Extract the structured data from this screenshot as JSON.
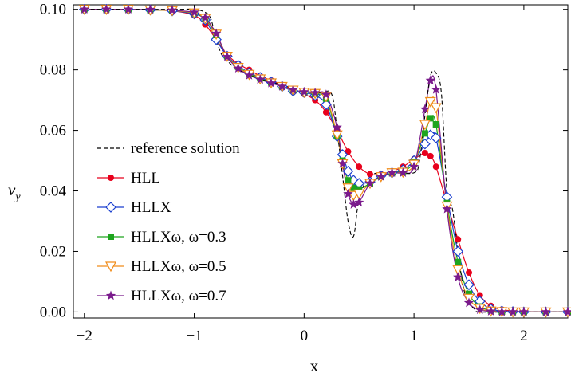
{
  "chart_data": {
    "type": "line",
    "title": "",
    "xlabel": "x",
    "ylabel_main": "v",
    "ylabel_sub": "y",
    "xlim": [
      -2.1,
      2.4
    ],
    "ylim": [
      -0.002,
      0.1015
    ],
    "x_ticks": [
      -2,
      -1,
      0,
      1,
      2
    ],
    "x_tick_labels": [
      "−2",
      "−1",
      "0",
      "1",
      "2"
    ],
    "y_ticks": [
      0.0,
      0.02,
      0.04,
      0.06,
      0.08,
      0.1
    ],
    "y_tick_labels": [
      "0.00",
      "0.02",
      "0.04",
      "0.06",
      "0.08",
      "0.10"
    ],
    "grid": false,
    "legend_position": "left-bottom",
    "series": [
      {
        "name": "reference solution",
        "color": "#000000",
        "style": "dashed",
        "marker": "none",
        "x": [
          -2.0,
          -1.2,
          -1.0,
          -0.9,
          -0.85,
          -0.8,
          -0.75,
          -0.7,
          -0.6,
          -0.4,
          -0.2,
          0.0,
          0.15,
          0.25,
          0.3,
          0.35,
          0.4,
          0.45,
          0.5,
          0.6,
          0.8,
          1.0,
          1.05,
          1.1,
          1.15,
          1.2,
          1.25,
          1.3,
          1.35,
          1.4,
          1.45,
          1.5,
          1.55,
          1.6,
          2.0,
          2.4
        ],
        "y": [
          0.1,
          0.1,
          0.1,
          0.099,
          0.097,
          0.09,
          0.085,
          0.083,
          0.08,
          0.077,
          0.075,
          0.073,
          0.0725,
          0.072,
          0.06,
          0.045,
          0.03,
          0.025,
          0.037,
          0.045,
          0.046,
          0.046,
          0.05,
          0.065,
          0.078,
          0.079,
          0.072,
          0.04,
          0.034,
          0.02,
          0.008,
          0.003,
          0.001,
          0.0,
          0.0,
          0.0
        ]
      },
      {
        "name": "HLL",
        "color": "#e8001c",
        "style": "solid",
        "marker": "circle",
        "x": [
          -2.0,
          -1.8,
          -1.6,
          -1.4,
          -1.2,
          -1.0,
          -0.9,
          -0.8,
          -0.7,
          -0.6,
          -0.5,
          -0.4,
          -0.3,
          -0.2,
          -0.1,
          0.0,
          0.1,
          0.2,
          0.3,
          0.4,
          0.5,
          0.6,
          0.7,
          0.8,
          0.9,
          1.0,
          1.1,
          1.15,
          1.2,
          1.3,
          1.4,
          1.5,
          1.6,
          1.7,
          1.8,
          1.9,
          2.0,
          2.2,
          2.4
        ],
        "y": [
          0.1,
          0.1,
          0.0999,
          0.0998,
          0.0995,
          0.098,
          0.095,
          0.09,
          0.085,
          0.082,
          0.08,
          0.078,
          0.0765,
          0.075,
          0.0735,
          0.072,
          0.07,
          0.066,
          0.06,
          0.053,
          0.048,
          0.0455,
          0.0455,
          0.0465,
          0.048,
          0.0505,
          0.0525,
          0.0515,
          0.048,
          0.036,
          0.024,
          0.013,
          0.0055,
          0.002,
          0.0008,
          0.0003,
          0.0001,
          0.0,
          0.0
        ]
      },
      {
        "name": "HLLX",
        "color": "#1a3fcf",
        "style": "solid",
        "marker": "diamond",
        "x": [
          -2.0,
          -1.8,
          -1.6,
          -1.4,
          -1.2,
          -1.0,
          -0.9,
          -0.8,
          -0.7,
          -0.6,
          -0.5,
          -0.4,
          -0.3,
          -0.2,
          -0.1,
          0.0,
          0.1,
          0.2,
          0.3,
          0.35,
          0.4,
          0.45,
          0.5,
          0.6,
          0.7,
          0.8,
          0.9,
          1.0,
          1.1,
          1.15,
          1.2,
          1.3,
          1.4,
          1.5,
          1.6,
          1.7,
          1.8,
          1.9,
          2.0,
          2.2,
          2.4
        ],
        "y": [
          0.1,
          0.1,
          0.1,
          0.0998,
          0.0995,
          0.0985,
          0.0965,
          0.09,
          0.0845,
          0.0815,
          0.079,
          0.0775,
          0.076,
          0.0745,
          0.073,
          0.0725,
          0.0715,
          0.0685,
          0.058,
          0.052,
          0.0465,
          0.0435,
          0.0425,
          0.043,
          0.045,
          0.046,
          0.047,
          0.05,
          0.0555,
          0.0585,
          0.0575,
          0.038,
          0.02,
          0.009,
          0.0035,
          0.001,
          0.0003,
          0.0001,
          0.0,
          0.0,
          0.0
        ]
      },
      {
        "name": "HLLXω, ω=0.3",
        "color": "#1ea51e",
        "style": "solid",
        "marker": "square",
        "x": [
          -2.0,
          -1.8,
          -1.6,
          -1.4,
          -1.2,
          -1.0,
          -0.9,
          -0.8,
          -0.7,
          -0.6,
          -0.5,
          -0.4,
          -0.3,
          -0.2,
          -0.1,
          0.0,
          0.1,
          0.2,
          0.3,
          0.35,
          0.4,
          0.45,
          0.5,
          0.6,
          0.7,
          0.8,
          0.9,
          1.0,
          1.1,
          1.15,
          1.2,
          1.3,
          1.4,
          1.5,
          1.6,
          1.7,
          1.8,
          1.9,
          2.0,
          2.2,
          2.4
        ],
        "y": [
          0.1,
          0.1,
          0.1,
          0.0998,
          0.0996,
          0.0987,
          0.0968,
          0.0915,
          0.0845,
          0.081,
          0.0787,
          0.0772,
          0.0758,
          0.0745,
          0.0733,
          0.0725,
          0.072,
          0.0705,
          0.058,
          0.05,
          0.0435,
          0.041,
          0.0405,
          0.0425,
          0.0447,
          0.046,
          0.0465,
          0.0495,
          0.059,
          0.064,
          0.062,
          0.036,
          0.0165,
          0.006,
          0.0018,
          0.0005,
          0.0001,
          0.0,
          0.0,
          0.0,
          0.0
        ]
      },
      {
        "name": "HLLXω, ω=0.5",
        "color": "#f08c1a",
        "style": "solid",
        "marker": "triangle-down",
        "x": [
          -2.0,
          -1.8,
          -1.6,
          -1.4,
          -1.2,
          -1.0,
          -0.9,
          -0.8,
          -0.7,
          -0.6,
          -0.5,
          -0.4,
          -0.3,
          -0.2,
          -0.1,
          0.0,
          0.1,
          0.2,
          0.3,
          0.35,
          0.4,
          0.45,
          0.5,
          0.6,
          0.7,
          0.8,
          0.9,
          1.0,
          1.1,
          1.15,
          1.2,
          1.3,
          1.4,
          1.5,
          1.6,
          1.7,
          1.8,
          1.9,
          2.0,
          2.2,
          2.4
        ],
        "y": [
          0.1,
          0.1,
          0.1,
          0.0998,
          0.0996,
          0.0988,
          0.097,
          0.0918,
          0.0845,
          0.0808,
          0.0785,
          0.077,
          0.0757,
          0.0745,
          0.0733,
          0.0726,
          0.0722,
          0.0712,
          0.0585,
          0.049,
          0.041,
          0.0385,
          0.039,
          0.0425,
          0.0447,
          0.046,
          0.0462,
          0.0488,
          0.062,
          0.0695,
          0.0675,
          0.035,
          0.014,
          0.0045,
          0.0012,
          0.0003,
          0.0001,
          0.0,
          0.0,
          0.0,
          0.0
        ]
      },
      {
        "name": "HLLXω, ω=0.7",
        "color": "#7a1a8c",
        "style": "solid",
        "marker": "star",
        "x": [
          -2.0,
          -1.8,
          -1.6,
          -1.4,
          -1.2,
          -1.0,
          -0.9,
          -0.8,
          -0.7,
          -0.6,
          -0.5,
          -0.4,
          -0.3,
          -0.2,
          -0.1,
          0.0,
          0.1,
          0.2,
          0.3,
          0.35,
          0.4,
          0.45,
          0.5,
          0.6,
          0.7,
          0.8,
          0.9,
          1.0,
          1.1,
          1.15,
          1.2,
          1.3,
          1.4,
          1.5,
          1.6,
          1.7,
          1.8,
          1.9,
          2.0,
          2.2,
          2.4
        ],
        "y": [
          0.1,
          0.1,
          0.1,
          0.0999,
          0.0997,
          0.099,
          0.0972,
          0.092,
          0.0843,
          0.0805,
          0.0782,
          0.0768,
          0.0756,
          0.0745,
          0.0734,
          0.0727,
          0.0724,
          0.0718,
          0.061,
          0.049,
          0.039,
          0.0355,
          0.0362,
          0.0425,
          0.0447,
          0.046,
          0.046,
          0.048,
          0.067,
          0.0765,
          0.0735,
          0.034,
          0.0115,
          0.003,
          0.0007,
          0.0002,
          0.0,
          0.0,
          0.0,
          0.0,
          0.0
        ]
      }
    ]
  }
}
